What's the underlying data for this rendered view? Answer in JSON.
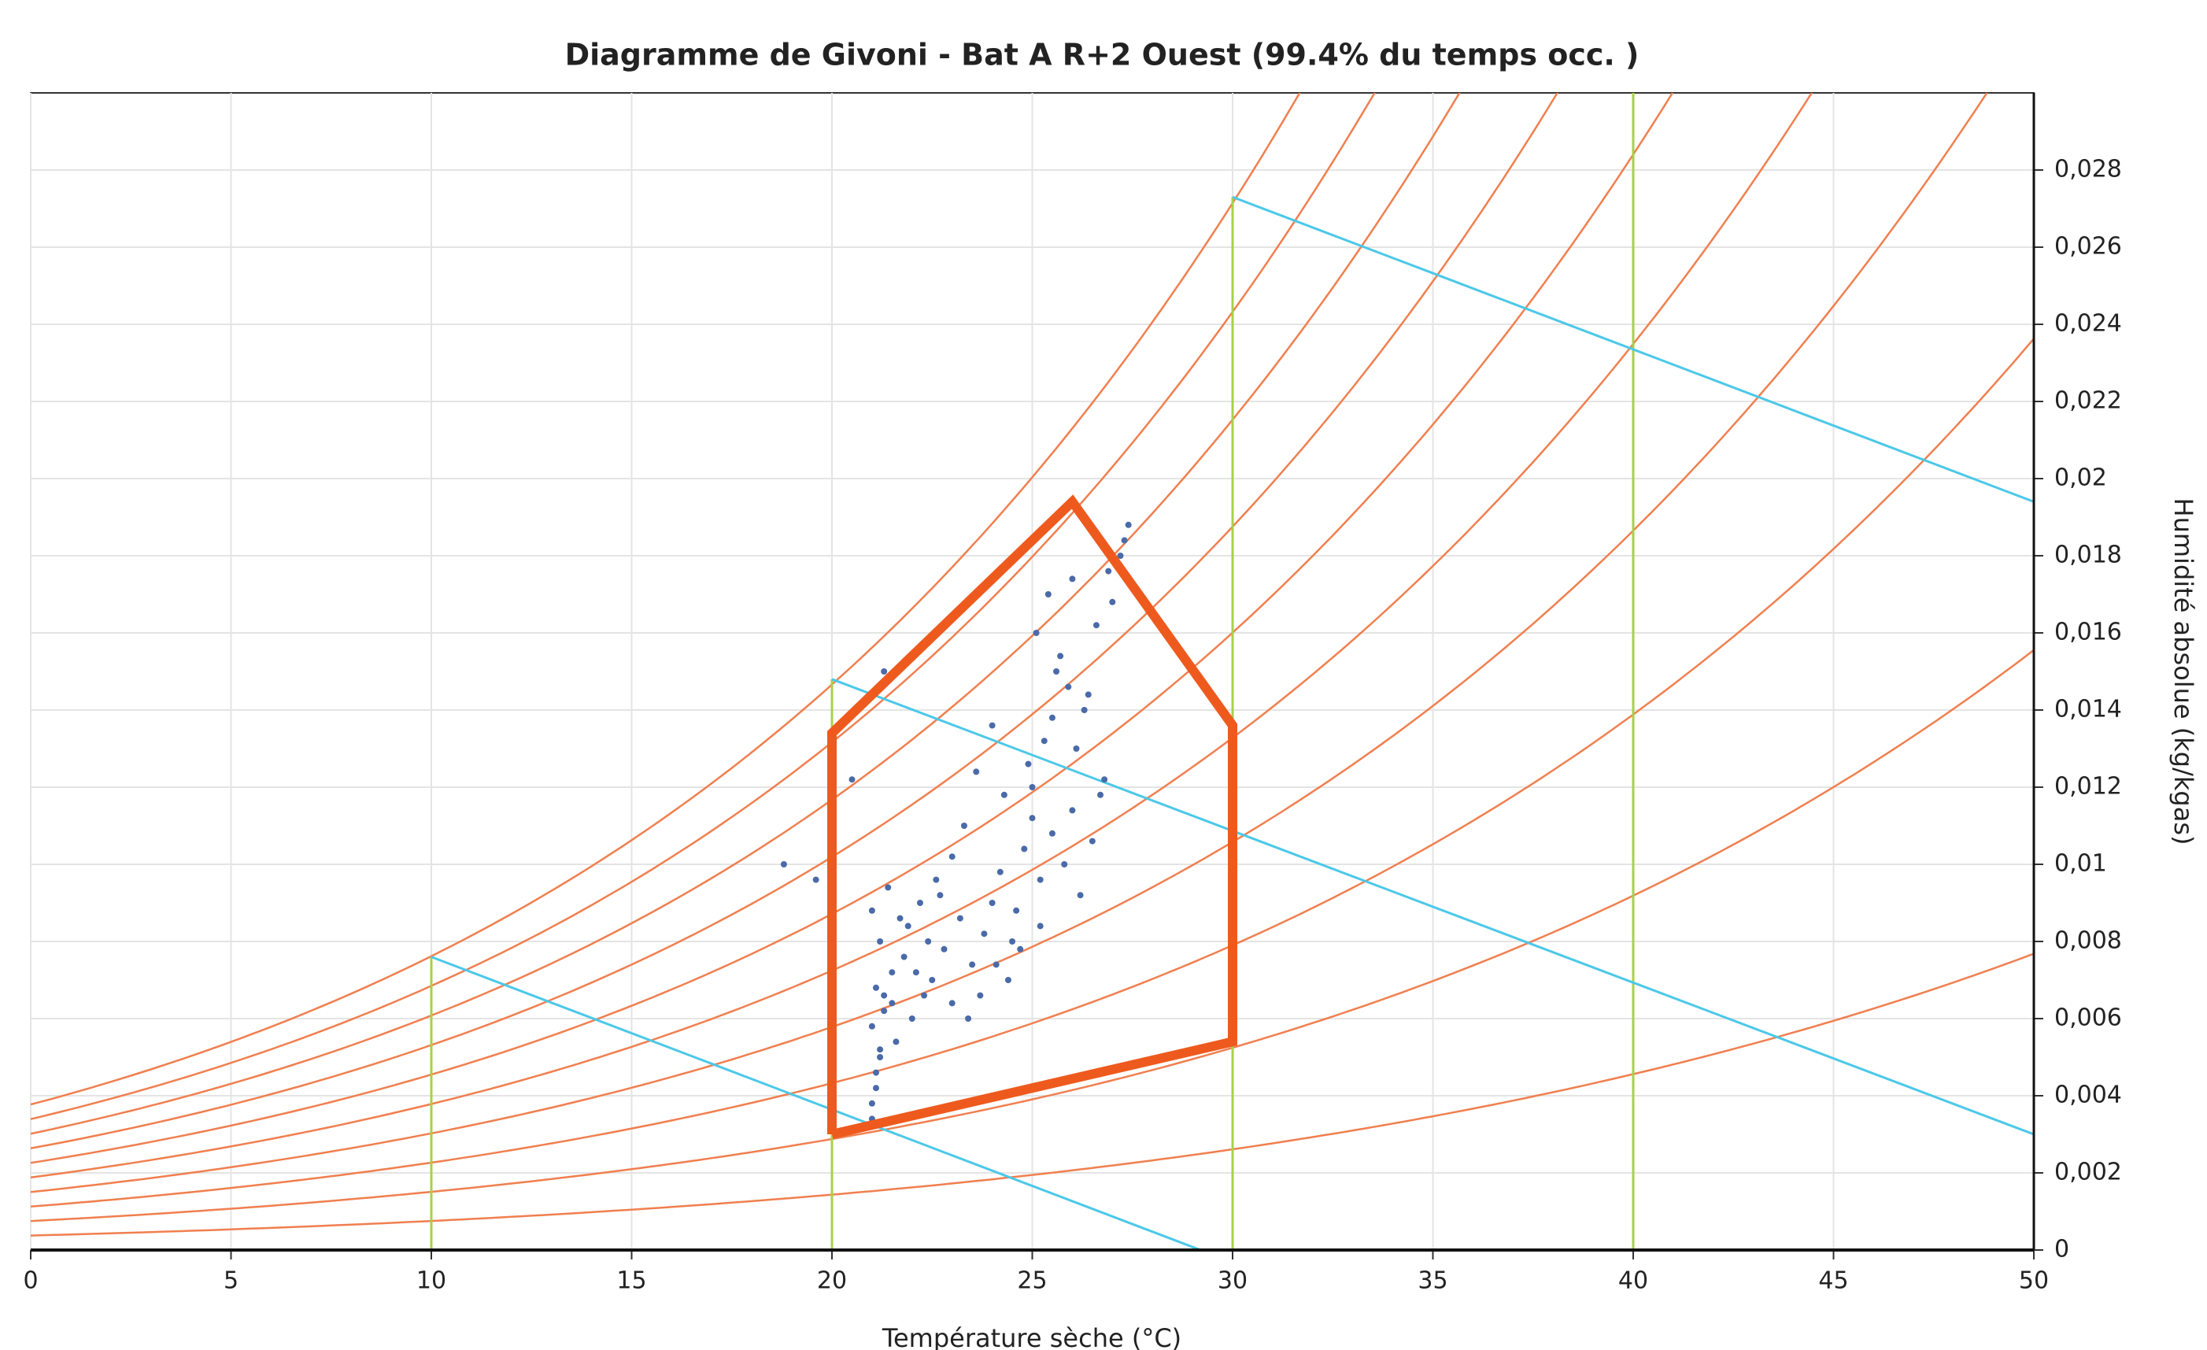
{
  "chart_data": {
    "type": "scatter",
    "title": "Diagramme de Givoni - Bat A R+2 Ouest (99.4% du temps occ. )",
    "x_label": "Température sèche (°C)",
    "y_label": "Humidité absolue (kg/kgas)",
    "xlim": [
      0,
      50
    ],
    "ylim": [
      0,
      0.03
    ],
    "xticks": [
      0,
      5,
      10,
      15,
      20,
      25,
      30,
      35,
      40,
      45,
      50
    ],
    "yticks": [
      0,
      {
        "value": 0.002,
        "label": "0,002"
      },
      {
        "value": 0.004,
        "label": "0,004"
      },
      {
        "value": 0.006,
        "label": "0,006"
      },
      {
        "value": 0.008,
        "label": "0,008"
      },
      {
        "value": 0.01,
        "label": "0,01"
      },
      {
        "value": 0.012,
        "label": "0,012"
      },
      {
        "value": 0.014,
        "label": "0,014"
      },
      {
        "value": 0.016,
        "label": "0,016"
      },
      {
        "value": 0.018,
        "label": "0,018"
      },
      {
        "value": 0.02,
        "label": "0,02"
      },
      {
        "value": 0.022,
        "label": "0,022"
      },
      {
        "value": 0.024,
        "label": "0,024"
      },
      {
        "value": 0.026,
        "label": "0,026"
      },
      {
        "value": 0.028,
        "label": "0,028"
      }
    ],
    "grid": true,
    "rh_levels": [
      10,
      20,
      30,
      40,
      50,
      60,
      70,
      80,
      90,
      100
    ],
    "rh_color": "#f07f4f",
    "green_lines": [
      [
        10,
        0,
        10,
        0.0076
      ],
      [
        20,
        0,
        20,
        0.0148
      ],
      [
        30,
        0,
        30,
        0.0273
      ],
      [
        40,
        0,
        40,
        0.03
      ]
    ],
    "green_color": "#a8d04a",
    "cyan_lines": [
      [
        10,
        0.0076,
        29.2,
        0
      ],
      [
        20,
        0.0148,
        50,
        0.003
      ],
      [
        30,
        0.0273,
        50,
        0.0194
      ]
    ],
    "cyan_color": "#4cc8e8",
    "zone": {
      "x": [
        20,
        20,
        26,
        30,
        30,
        20
      ],
      "y": [
        0.003,
        0.0134,
        0.0194,
        0.0136,
        0.0054,
        0.003
      ],
      "color": "#ee5a1e"
    },
    "series": [
      {
        "color": "#4a6aa8",
        "x": [
          21.0,
          21.1,
          21.2,
          21.0,
          21.3,
          21.1,
          21.5,
          21.8,
          21.2,
          21.0,
          21.4,
          21.6,
          22.0,
          22.3,
          21.9,
          22.5,
          22.8,
          23.0,
          23.2,
          22.7,
          23.5,
          23.8,
          24.0,
          24.2,
          24.5,
          24.8,
          25.0,
          25.2,
          25.5,
          25.0,
          24.6,
          24.9,
          25.3,
          25.8,
          26.0,
          26.2,
          26.5,
          26.8,
          26.3,
          25.6,
          24.3,
          24.0,
          23.6,
          23.3,
          23.0,
          22.6,
          22.2,
          21.7,
          21.3,
          21.1,
          25.1,
          25.4,
          25.7,
          26.1,
          26.4,
          26.7,
          27.0,
          27.2,
          27.4,
          27.3,
          26.9,
          26.6,
          25.9,
          25.5,
          25.2,
          24.7,
          24.4,
          24.1,
          23.7,
          23.4,
          21.0,
          21.2,
          21.5,
          22.1,
          22.4,
          18.8,
          19.6,
          20.5,
          21.3,
          26.0
        ],
        "values": [
          0.0034,
          0.0042,
          0.005,
          0.0058,
          0.0062,
          0.0068,
          0.0072,
          0.0076,
          0.008,
          0.0088,
          0.0094,
          0.0054,
          0.006,
          0.0066,
          0.0084,
          0.007,
          0.0078,
          0.0064,
          0.0086,
          0.0092,
          0.0074,
          0.0082,
          0.009,
          0.0098,
          0.008,
          0.0104,
          0.0112,
          0.0096,
          0.0108,
          0.012,
          0.0088,
          0.0126,
          0.0132,
          0.01,
          0.0114,
          0.0092,
          0.0106,
          0.0122,
          0.014,
          0.015,
          0.0118,
          0.0136,
          0.0124,
          0.011,
          0.0102,
          0.0096,
          0.009,
          0.0086,
          0.0066,
          0.0046,
          0.016,
          0.017,
          0.0154,
          0.013,
          0.0144,
          0.0118,
          0.0168,
          0.018,
          0.0188,
          0.0184,
          0.0176,
          0.0162,
          0.0146,
          0.0138,
          0.0084,
          0.0078,
          0.007,
          0.0074,
          0.0066,
          0.006,
          0.0038,
          0.0052,
          0.0064,
          0.0072,
          0.008,
          0.01,
          0.0096,
          0.0122,
          0.015,
          0.0174
        ]
      }
    ]
  }
}
